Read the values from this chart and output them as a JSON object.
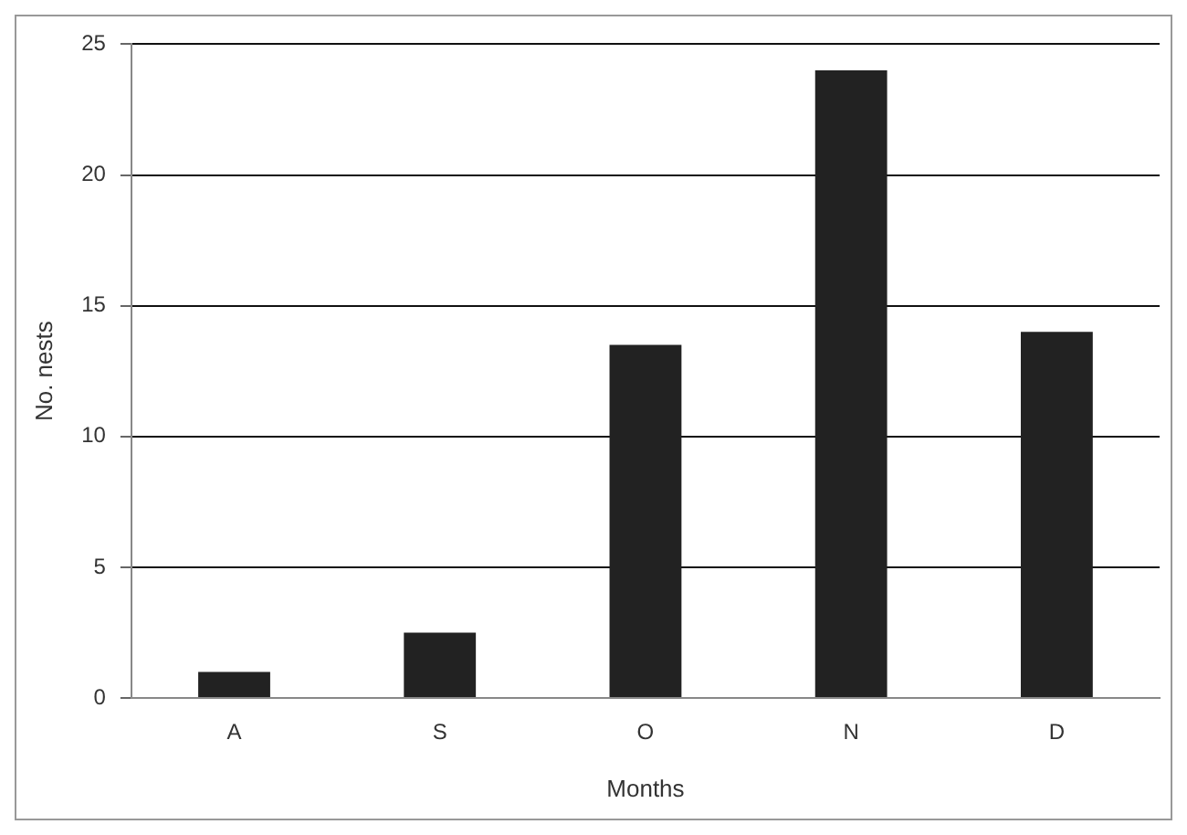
{
  "chart_data": {
    "type": "bar",
    "xlabel": "Months",
    "ylabel": "No. nests",
    "categories": [
      "A",
      "S",
      "O",
      "N",
      "D"
    ],
    "values": [
      1,
      2.5,
      13.5,
      24,
      14
    ],
    "color": "#222222",
    "ylim": [
      0,
      25
    ],
    "yticks": [
      0,
      5,
      10,
      15,
      20,
      25
    ],
    "grid": "y",
    "legend": false
  }
}
